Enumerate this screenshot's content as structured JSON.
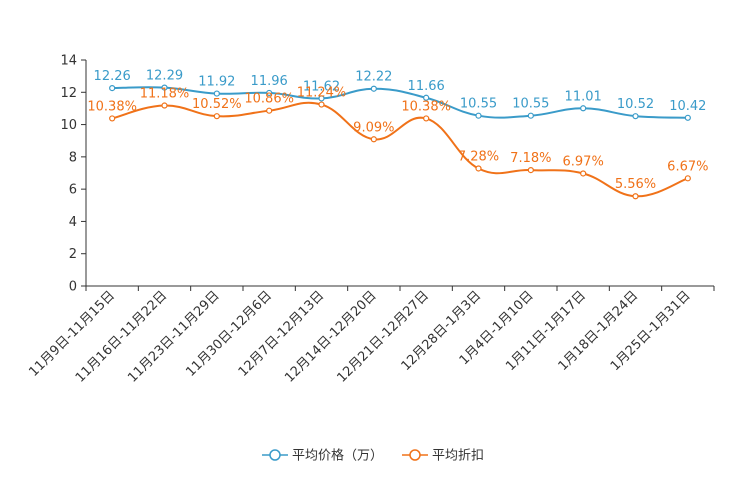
{
  "chart_data": {
    "type": "line",
    "title": "",
    "xlabel": "",
    "ylabel": "",
    "ylim": [
      0,
      14
    ],
    "yticks": [
      0,
      2,
      4,
      6,
      8,
      10,
      12,
      14
    ],
    "yticks_labels": [
      "0",
      "2",
      "4",
      "6",
      "8",
      "10",
      "12",
      "14"
    ],
    "grid": false,
    "legend_position": "bottom-center",
    "categories": [
      "11月9日-11月15日",
      "11月16日-11月22日",
      "11月23日-11月29日",
      "11月30日-12月6日",
      "12月7日-12月13日",
      "12月14日-12月20日",
      "12月21日-12月27日",
      "12月28日-1月3日",
      "1月4日-1月10日",
      "1月11日-1月17日",
      "1月18日-1月24日",
      "1月25日-1月31日"
    ],
    "series": [
      {
        "name": "平均价格（万）",
        "color": "#3a9bc9",
        "values": [
          12.26,
          12.29,
          11.92,
          11.96,
          11.62,
          12.22,
          11.66,
          10.55,
          10.55,
          11.01,
          10.52,
          10.42
        ],
        "labels": [
          "12.26",
          "12.29",
          "11.92",
          "11.96",
          "11.62",
          "12.22",
          "11.66",
          "10.55",
          "10.55",
          "11.01",
          "10.52",
          "10.42"
        ]
      },
      {
        "name": "平均折扣",
        "color": "#f07219",
        "values": [
          10.38,
          11.18,
          10.52,
          10.86,
          11.24,
          9.09,
          10.38,
          7.28,
          7.18,
          6.97,
          5.56,
          6.67
        ],
        "labels": [
          "10.38%",
          "11.18%",
          "10.52%",
          "10.86%",
          "11.24%",
          "9.09%",
          "10.38%",
          "7.28%",
          "7.18%",
          "6.97%",
          "5.56%",
          "6.67%"
        ]
      }
    ]
  }
}
